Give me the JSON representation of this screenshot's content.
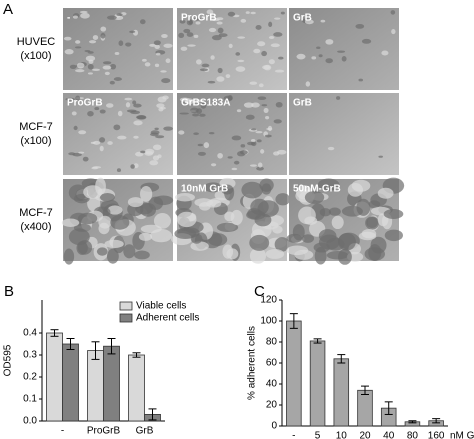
{
  "panel_a": {
    "label": "A",
    "rows": [
      {
        "label": [
          "HUVEC",
          "(x100)"
        ],
        "images": [
          "-",
          "ProGrB",
          "GrB"
        ]
      },
      {
        "label": [
          "MCF-7",
          "(x100)"
        ],
        "images": [
          "ProGrB",
          "GrBS183A",
          "GrB"
        ]
      },
      {
        "label": [
          "MCF-7",
          "(x400)"
        ],
        "images": [
          null,
          "10nM GrB",
          "50nM-GrB"
        ]
      }
    ]
  },
  "chart_data": [
    {
      "type": "bar",
      "panel": "B",
      "ylabel": "OD595",
      "categories": [
        "-",
        "ProGrB",
        "GrB"
      ],
      "series": [
        {
          "name": "Viable cells",
          "color": "#d9d9d9",
          "values": [
            0.4,
            0.32,
            0.3
          ],
          "errors": [
            0.015,
            0.04,
            0.01
          ]
        },
        {
          "name": "Adherent cells",
          "color": "#808080",
          "values": [
            0.35,
            0.34,
            0.03
          ],
          "errors": [
            0.025,
            0.035,
            0.025
          ]
        }
      ],
      "ylim": [
        0,
        0.55
      ],
      "yticks": [
        {
          "value": 0,
          "label": "0.0"
        },
        0.1,
        0.2,
        0.3,
        0.4
      ],
      "legend": "top-right"
    },
    {
      "type": "bar",
      "panel": "C",
      "ylabel": "% adherent cells",
      "xlabel": "nM GrB",
      "categories": [
        "-",
        "5",
        "10",
        "20",
        "40",
        "80",
        "160"
      ],
      "series": [
        {
          "color": "#a6a6a6",
          "values": [
            100,
            81,
            64,
            34,
            17,
            4,
            5
          ],
          "errors": [
            7,
            2,
            4,
            4,
            6,
            1,
            2
          ]
        }
      ],
      "ylim": [
        0,
        120
      ],
      "yticks": [
        0,
        20,
        40,
        60,
        80,
        100,
        120
      ]
    }
  ]
}
